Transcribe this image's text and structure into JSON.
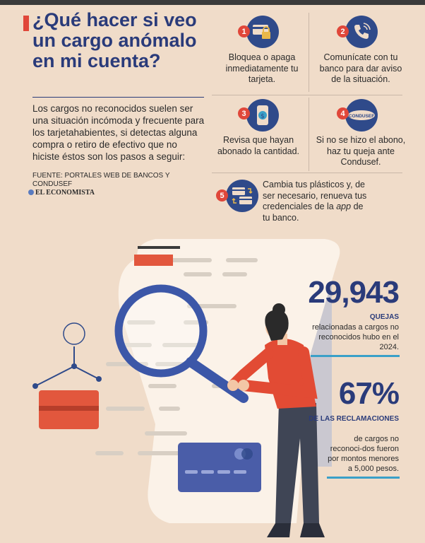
{
  "title": "¿Qué hacer si veo un cargo anómalo en mi cuenta?",
  "intro": "Los cargos no reconocidos suelen ser una situación incómoda y frecuente para los tarjetahabientes, si detectas alguna compra o retiro de efectivo que no hiciste éstos son los pasos a seguir:",
  "source": "FUENTE: PORTALES WEB DE BANCOS Y CONDUSEF",
  "brand": "EL ECONOMISTA",
  "steps": [
    {
      "num": "1",
      "text": "Bloquea o apaga inmediatamente tu tarjeta.",
      "icon": "card-lock-icon"
    },
    {
      "num": "2",
      "text": "Comunícate con tu banco para dar aviso de la situación.",
      "icon": "phone-call-icon"
    },
    {
      "num": "3",
      "text": "Revisa que hayan abonado la cantidad.",
      "icon": "phone-money-icon"
    },
    {
      "num": "4",
      "text": "Si no se hizo el abono, haz tu queja ante Condusef.",
      "icon": "condusef-logo-icon",
      "logo_text": "CONDUSEF"
    },
    {
      "num": "5",
      "text_prefix": "Cambia tus plásticos y, de ser necesario, renueva tus credenciales de la ",
      "text_em": "app",
      "text_suffix": " de tu banco.",
      "icon": "card-exchange-icon"
    }
  ],
  "stats": [
    {
      "value": "29,943",
      "label": "QUEJAS",
      "desc": "relacionadas a cargos no reconocidos hubo en el 2024."
    },
    {
      "value": "67%",
      "label": "DE LAS RECLAMACIONES",
      "desc": "de cargos no reconoci-dos fueron por montos menores a 5,000 pesos."
    }
  ],
  "colors": {
    "background": "#f0dcc9",
    "navy": "#2a3b7a",
    "red": "#e0473a",
    "teal": "#3aa0c8"
  }
}
